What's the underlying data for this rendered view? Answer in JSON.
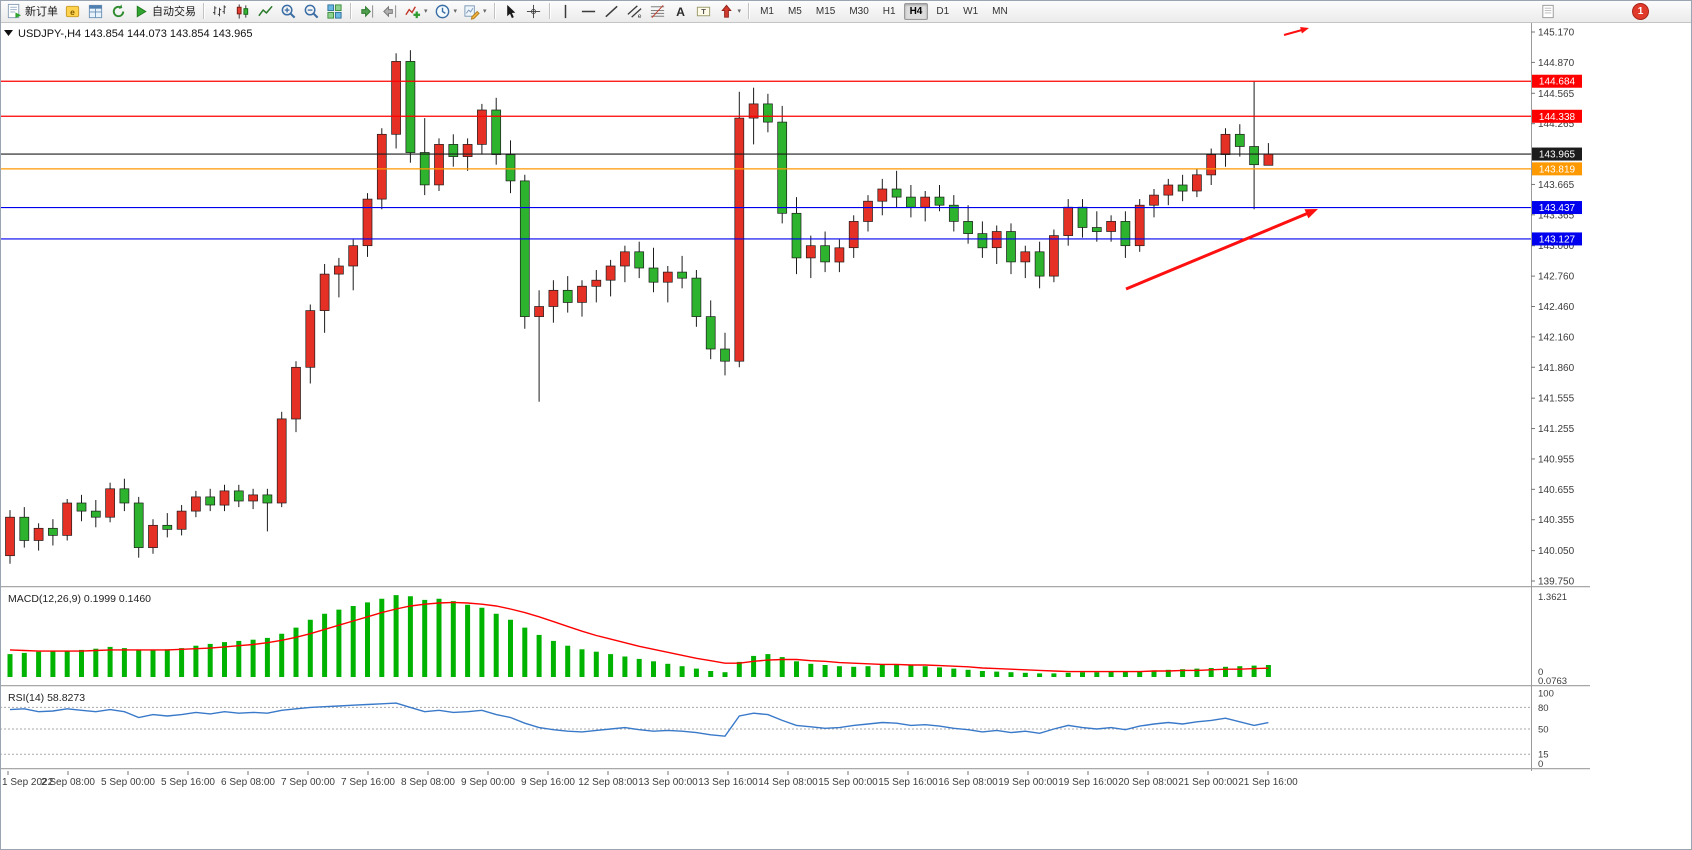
{
  "toolbar": {
    "new_order_label": "新订单",
    "autotrade_label": "自动交易",
    "timeframes": [
      "M1",
      "M5",
      "M15",
      "M30",
      "H1",
      "H4",
      "D1",
      "W1",
      "MN"
    ],
    "active_timeframe": "H4",
    "notification_count": "1",
    "items": [
      {
        "type": "button",
        "name": "new-order-button",
        "icon": "new-order-icon",
        "label_key": "new_order_label"
      },
      {
        "type": "icon",
        "name": "metaeditor-button",
        "icon": "metaeditor-icon"
      },
      {
        "type": "icon",
        "name": "market-watch-button",
        "icon": "market-watch-icon"
      },
      {
        "type": "icon",
        "name": "refresh-button",
        "icon": "refresh-icon"
      },
      {
        "type": "button",
        "name": "autotrading-button",
        "icon": "autotrade-icon",
        "label_key": "autotrade_label"
      },
      {
        "type": "sep"
      },
      {
        "type": "icon",
        "name": "bar-chart-button",
        "icon": "bar-chart-icon"
      },
      {
        "type": "icon",
        "name": "candlestick-chart-button",
        "icon": "candlestick-icon"
      },
      {
        "type": "icon",
        "name": "line-chart-button",
        "icon": "line-chart-icon"
      },
      {
        "type": "icon",
        "name": "zoom-in-button",
        "icon": "zoom-in-icon"
      },
      {
        "type": "icon",
        "name": "zoom-out-button",
        "icon": "zoom-out-icon"
      },
      {
        "type": "icon",
        "name": "tile-windows-button",
        "icon": "tile-windows-icon"
      },
      {
        "type": "sep"
      },
      {
        "type": "icon",
        "name": "auto-scroll-button",
        "icon": "auto-scroll-icon"
      },
      {
        "type": "icon",
        "name": "chart-shift-button",
        "icon": "chart-shift-icon"
      },
      {
        "type": "icon",
        "name": "indicators-button",
        "icon": "indicators-icon",
        "dropdown": true
      },
      {
        "type": "icon",
        "name": "periods-button",
        "icon": "periods-icon",
        "dropdown": true
      },
      {
        "type": "icon",
        "name": "templates-button",
        "icon": "templates-icon",
        "dropdown": true
      },
      {
        "type": "sep"
      },
      {
        "type": "icon",
        "name": "cursor-button",
        "icon": "cursor-icon"
      },
      {
        "type": "icon",
        "name": "crosshair-button",
        "icon": "crosshair-icon"
      },
      {
        "type": "sep"
      },
      {
        "type": "icon",
        "name": "vertical-line-button",
        "icon": "vertical-line-icon"
      },
      {
        "type": "icon",
        "name": "horizontal-line-button",
        "icon": "horizontal-line-icon"
      },
      {
        "type": "icon",
        "name": "trendline-button",
        "icon": "trendline-icon"
      },
      {
        "type": "icon",
        "name": "channel-button",
        "icon": "channel-icon"
      },
      {
        "type": "icon",
        "name": "fibonacci-button",
        "icon": "fibonacci-icon"
      },
      {
        "type": "icon",
        "name": "text-button",
        "icon": "text-icon"
      },
      {
        "type": "icon",
        "name": "text-label-button",
        "icon": "text-label-icon"
      },
      {
        "type": "icon",
        "name": "arrows-button",
        "icon": "arrows-icon",
        "dropdown": true
      },
      {
        "type": "sep"
      },
      {
        "type": "timeframes"
      },
      {
        "type": "spacer"
      },
      {
        "type": "icon",
        "name": "news-button",
        "icon": "news-icon"
      },
      {
        "type": "gap"
      },
      {
        "type": "badge",
        "name": "notification-badge"
      }
    ]
  },
  "chart": {
    "symbol_info": "USDJPY-,H4 143.854 144.073 143.854 143.965",
    "levels": [
      {
        "name": "resistance-line-upper",
        "price": "144.684",
        "color": "#ff0000"
      },
      {
        "name": "resistance-line-lower",
        "price": "144.338",
        "color": "#ff0000"
      },
      {
        "name": "current-price-line",
        "price": "143.965",
        "color": "#1c1c1c"
      },
      {
        "name": "pivot-line-orange",
        "price": "143.819",
        "color": "#ff9900"
      },
      {
        "name": "support-line-upper",
        "price": "143.437",
        "color": "#0000ee"
      },
      {
        "name": "support-line-lower",
        "price": "143.127",
        "color": "#0000ee"
      }
    ]
  },
  "chart_data": {
    "type": "candlestick",
    "symbol": "USDJPY-",
    "timeframe": "H4",
    "ohlc_current": {
      "open": 143.854,
      "high": 144.073,
      "low": 143.854,
      "close": 143.965
    },
    "y_range": [
      139.75,
      145.17
    ],
    "price_axis_ticks": [
      "145.170",
      "144.870",
      "144.565",
      "144.265",
      "143.965",
      "143.665",
      "143.365",
      "143.060",
      "142.760",
      "142.460",
      "142.160",
      "141.860",
      "141.555",
      "141.255",
      "140.955",
      "140.655",
      "140.355",
      "140.050",
      "139.750"
    ],
    "time_labels": [
      "1 Sep 2022",
      "2 Sep 08:00",
      "5 Sep 00:00",
      "5 Sep 16:00",
      "6 Sep 08:00",
      "7 Sep 00:00",
      "7 Sep 16:00",
      "8 Sep 08:00",
      "9 Sep 00:00",
      "9 Sep 16:00",
      "12 Sep 08:00",
      "13 Sep 00:00",
      "13 Sep 16:00",
      "14 Sep 08:00",
      "15 Sep 00:00",
      "15 Sep 16:00",
      "16 Sep 08:00",
      "19 Sep 00:00",
      "19 Sep 16:00",
      "20 Sep 08:00",
      "21 Sep 00:00",
      "21 Sep 16:00"
    ],
    "colors": {
      "bull": "#e53125",
      "bear": "#2db32d",
      "wick": "#1c1c1c"
    },
    "candles": [
      [
        140.0,
        140.45,
        139.92,
        140.38
      ],
      [
        140.38,
        140.48,
        140.08,
        140.15
      ],
      [
        140.15,
        140.32,
        140.05,
        140.27
      ],
      [
        140.27,
        140.36,
        140.1,
        140.2
      ],
      [
        140.2,
        140.56,
        140.15,
        140.52
      ],
      [
        140.52,
        140.6,
        140.34,
        140.44
      ],
      [
        140.44,
        140.55,
        140.28,
        140.38
      ],
      [
        140.38,
        140.72,
        140.33,
        140.66
      ],
      [
        140.66,
        140.76,
        140.44,
        140.52
      ],
      [
        140.52,
        140.58,
        139.98,
        140.08
      ],
      [
        140.08,
        140.36,
        140.02,
        140.3
      ],
      [
        140.3,
        140.42,
        140.18,
        140.26
      ],
      [
        140.26,
        140.5,
        140.2,
        140.44
      ],
      [
        140.44,
        140.64,
        140.38,
        140.58
      ],
      [
        140.58,
        140.66,
        140.44,
        140.5
      ],
      [
        140.5,
        140.7,
        140.44,
        140.64
      ],
      [
        140.64,
        140.7,
        140.48,
        140.54
      ],
      [
        140.54,
        140.66,
        140.46,
        140.6
      ],
      [
        140.6,
        140.66,
        140.24,
        140.52
      ],
      [
        140.52,
        141.42,
        140.48,
        141.35
      ],
      [
        141.35,
        141.92,
        141.22,
        141.86
      ],
      [
        141.86,
        142.48,
        141.7,
        142.42
      ],
      [
        142.42,
        142.88,
        142.2,
        142.78
      ],
      [
        142.78,
        142.94,
        142.55,
        142.86
      ],
      [
        142.86,
        143.12,
        142.62,
        143.06
      ],
      [
        143.06,
        143.58,
        142.95,
        143.52
      ],
      [
        143.52,
        144.22,
        143.42,
        144.16
      ],
      [
        144.16,
        144.96,
        144.02,
        144.88
      ],
      [
        144.88,
        144.99,
        143.88,
        143.98
      ],
      [
        143.98,
        144.32,
        143.56,
        143.66
      ],
      [
        143.66,
        144.12,
        143.6,
        144.06
      ],
      [
        144.06,
        144.16,
        143.84,
        143.94
      ],
      [
        143.94,
        144.12,
        143.8,
        144.06
      ],
      [
        144.06,
        144.46,
        143.96,
        144.4
      ],
      [
        144.4,
        144.52,
        143.86,
        143.96
      ],
      [
        143.96,
        144.1,
        143.58,
        143.7
      ],
      [
        143.7,
        143.76,
        142.24,
        142.36
      ],
      [
        142.36,
        142.62,
        141.52,
        142.46
      ],
      [
        142.46,
        142.72,
        142.3,
        142.62
      ],
      [
        142.62,
        142.76,
        142.4,
        142.5
      ],
      [
        142.5,
        142.72,
        142.36,
        142.66
      ],
      [
        142.66,
        142.82,
        142.5,
        142.72
      ],
      [
        142.72,
        142.92,
        142.56,
        142.86
      ],
      [
        142.86,
        143.06,
        142.7,
        143.0
      ],
      [
        143.0,
        143.1,
        142.74,
        142.84
      ],
      [
        142.84,
        143.04,
        142.6,
        142.7
      ],
      [
        142.7,
        142.86,
        142.5,
        142.8
      ],
      [
        142.8,
        142.96,
        142.64,
        142.74
      ],
      [
        142.74,
        142.82,
        142.26,
        142.36
      ],
      [
        142.36,
        142.52,
        141.94,
        142.04
      ],
      [
        142.04,
        142.2,
        141.78,
        141.92
      ],
      [
        141.92,
        144.58,
        141.86,
        144.32
      ],
      [
        144.32,
        144.62,
        144.06,
        144.46
      ],
      [
        144.46,
        144.56,
        144.18,
        144.28
      ],
      [
        144.28,
        144.44,
        143.28,
        143.38
      ],
      [
        143.38,
        143.54,
        142.78,
        142.94
      ],
      [
        142.94,
        143.16,
        142.74,
        143.06
      ],
      [
        143.06,
        143.2,
        142.8,
        142.9
      ],
      [
        142.9,
        143.12,
        142.8,
        143.04
      ],
      [
        143.04,
        143.36,
        142.94,
        143.3
      ],
      [
        143.3,
        143.56,
        143.2,
        143.5
      ],
      [
        143.5,
        143.72,
        143.36,
        143.62
      ],
      [
        143.62,
        143.8,
        143.44,
        143.54
      ],
      [
        143.54,
        143.66,
        143.34,
        143.44
      ],
      [
        143.44,
        143.6,
        143.3,
        143.54
      ],
      [
        143.54,
        143.66,
        143.4,
        143.46
      ],
      [
        143.46,
        143.56,
        143.2,
        143.3
      ],
      [
        143.3,
        143.46,
        143.08,
        143.18
      ],
      [
        143.18,
        143.3,
        142.94,
        143.04
      ],
      [
        143.04,
        143.26,
        142.88,
        143.2
      ],
      [
        143.2,
        143.28,
        142.78,
        142.9
      ],
      [
        142.9,
        143.06,
        142.74,
        143.0
      ],
      [
        143.0,
        143.1,
        142.64,
        142.76
      ],
      [
        142.76,
        143.22,
        142.7,
        143.16
      ],
      [
        143.16,
        143.52,
        143.06,
        143.44
      ],
      [
        143.44,
        143.52,
        143.14,
        143.24
      ],
      [
        143.24,
        143.4,
        143.1,
        143.2
      ],
      [
        143.2,
        143.36,
        143.1,
        143.3
      ],
      [
        143.3,
        143.4,
        142.94,
        143.06
      ],
      [
        143.06,
        143.52,
        143.0,
        143.46
      ],
      [
        143.46,
        143.62,
        143.34,
        143.56
      ],
      [
        143.56,
        143.72,
        143.46,
        143.66
      ],
      [
        143.66,
        143.76,
        143.5,
        143.6
      ],
      [
        143.6,
        143.82,
        143.54,
        143.76
      ],
      [
        143.76,
        144.02,
        143.66,
        143.96
      ],
      [
        143.96,
        144.22,
        143.84,
        144.16
      ],
      [
        144.16,
        144.26,
        143.94,
        144.04
      ],
      [
        144.04,
        144.68,
        143.42,
        143.86
      ],
      [
        143.854,
        144.073,
        143.854,
        143.965
      ]
    ],
    "indicators": {
      "macd": {
        "header": "MACD(12,26,9) 0.1999 0.1460",
        "name": "MACD",
        "params": [
          12,
          26,
          9
        ],
        "main_value": 0.1999,
        "signal_value": 0.146,
        "max": 1.3621,
        "axis_labels": [
          "1.3621",
          "0",
          "0.0763"
        ],
        "colors": {
          "histogram": "#00b300",
          "signal": "#ff0000"
        },
        "histogram": [
          0.38,
          0.4,
          0.42,
          0.44,
          0.43,
          0.45,
          0.47,
          0.5,
          0.48,
          0.45,
          0.44,
          0.46,
          0.48,
          0.52,
          0.55,
          0.58,
          0.6,
          0.62,
          0.65,
          0.72,
          0.82,
          0.95,
          1.05,
          1.12,
          1.18,
          1.24,
          1.3,
          1.36,
          1.34,
          1.28,
          1.3,
          1.26,
          1.2,
          1.15,
          1.05,
          0.95,
          0.82,
          0.7,
          0.6,
          0.52,
          0.46,
          0.42,
          0.38,
          0.34,
          0.3,
          0.26,
          0.22,
          0.18,
          0.14,
          0.1,
          0.08,
          0.25,
          0.35,
          0.38,
          0.33,
          0.26,
          0.22,
          0.2,
          0.18,
          0.17,
          0.18,
          0.2,
          0.21,
          0.2,
          0.18,
          0.16,
          0.14,
          0.12,
          0.1,
          0.09,
          0.08,
          0.07,
          0.06,
          0.06,
          0.07,
          0.08,
          0.08,
          0.09,
          0.09,
          0.1,
          0.11,
          0.12,
          0.13,
          0.14,
          0.15,
          0.17,
          0.18,
          0.19,
          0.2
        ],
        "signal": [
          0.45,
          0.44,
          0.43,
          0.43,
          0.43,
          0.43,
          0.44,
          0.45,
          0.45,
          0.45,
          0.45,
          0.45,
          0.46,
          0.47,
          0.48,
          0.5,
          0.52,
          0.54,
          0.57,
          0.61,
          0.66,
          0.72,
          0.79,
          0.86,
          0.93,
          1.0,
          1.07,
          1.13,
          1.18,
          1.21,
          1.23,
          1.24,
          1.23,
          1.21,
          1.18,
          1.13,
          1.07,
          1.0,
          0.92,
          0.84,
          0.76,
          0.69,
          0.63,
          0.57,
          0.51,
          0.46,
          0.41,
          0.36,
          0.31,
          0.27,
          0.23,
          0.23,
          0.26,
          0.28,
          0.29,
          0.29,
          0.27,
          0.26,
          0.24,
          0.23,
          0.22,
          0.21,
          0.21,
          0.2,
          0.2,
          0.19,
          0.18,
          0.17,
          0.15,
          0.14,
          0.13,
          0.12,
          0.11,
          0.1,
          0.09,
          0.09,
          0.09,
          0.09,
          0.09,
          0.09,
          0.1,
          0.1,
          0.11,
          0.11,
          0.12,
          0.13,
          0.13,
          0.14,
          0.146
        ]
      },
      "rsi": {
        "header": "RSI(14) 58.8273",
        "name": "RSI",
        "period": 14,
        "value": 58.8273,
        "levels": [
          80,
          50,
          15
        ],
        "axis_labels": [
          "100",
          "80",
          "50",
          "15",
          "0"
        ],
        "color": "#3979c9",
        "values": [
          77,
          78,
          74,
          75,
          78,
          76,
          74,
          77,
          74,
          66,
          70,
          68,
          70,
          73,
          71,
          74,
          72,
          73,
          72,
          76,
          78,
          80,
          81,
          82,
          83,
          84,
          85,
          86,
          80,
          74,
          76,
          73,
          74,
          76,
          70,
          66,
          58,
          52,
          49,
          47,
          46,
          48,
          50,
          52,
          49,
          47,
          48,
          47,
          45,
          42,
          40,
          68,
          72,
          70,
          62,
          55,
          53,
          51,
          52,
          55,
          57,
          59,
          58,
          55,
          56,
          54,
          51,
          49,
          46,
          48,
          45,
          47,
          44,
          50,
          55,
          52,
          50,
          52,
          49,
          54,
          57,
          59,
          57,
          60,
          62,
          65,
          60,
          55,
          58.8273
        ]
      }
    },
    "annotations": {
      "trend_arrow": {
        "color": "#ff1010",
        "direction": "up-right"
      },
      "small_arrow": {
        "color": "#ff1010",
        "direction": "right"
      }
    }
  }
}
